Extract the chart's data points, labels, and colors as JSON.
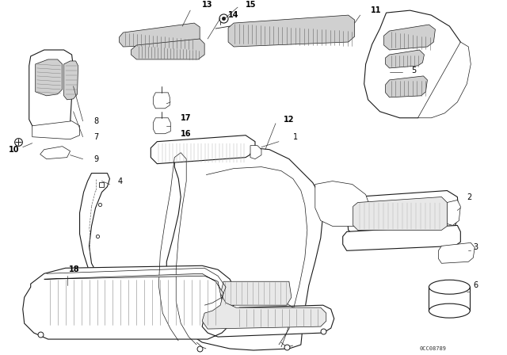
{
  "background_color": "#ffffff",
  "fig_width": 6.4,
  "fig_height": 4.48,
  "dpi": 100,
  "watermark": "0CC08789",
  "line_color": "#1a1a1a",
  "label_fontsize": 6.5,
  "label_color": "#000000",
  "gray_fill": "#d0d0d0",
  "light_gray": "#e8e8e8",
  "hatch_color": "#555555"
}
